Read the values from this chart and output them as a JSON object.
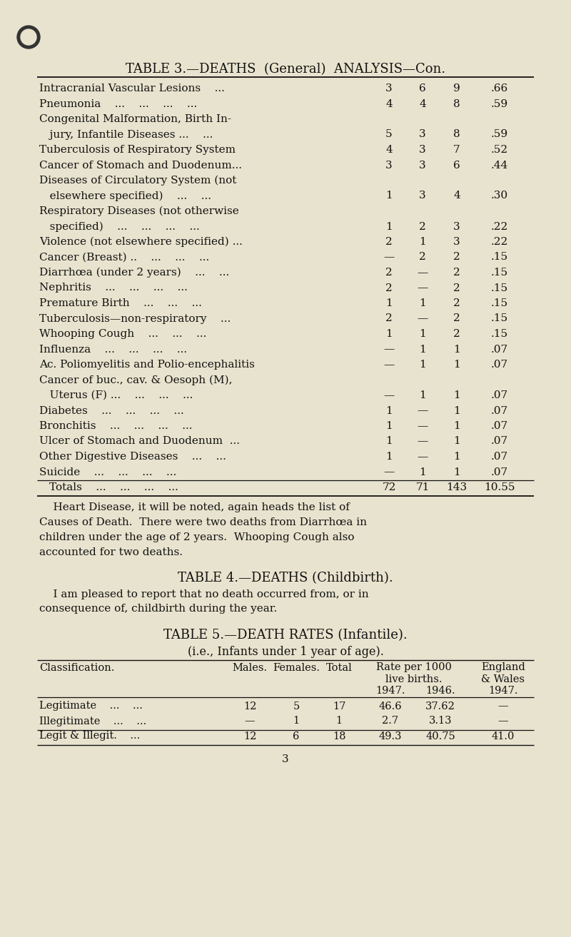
{
  "bg_color": "#e8e3ce",
  "title3": "TABLE 3.—DEATHS  (General)  ANALYSIS—Con.",
  "table3_rows": [
    [
      "Intracranial Vascular Lesions    ...",
      "3",
      "6",
      "9",
      ".66"
    ],
    [
      "Pneumonia    ...    ...    ...    ...",
      "4",
      "4",
      "8",
      ".59"
    ],
    [
      "Congenital Malformation, Birth In-",
      "",
      "",
      "",
      ""
    ],
    [
      "   jury, Infantile Diseases ...    ...",
      "5",
      "3",
      "8",
      ".59"
    ],
    [
      "Tuberculosis of Respiratory System",
      "4",
      "3",
      "7",
      ".52"
    ],
    [
      "Cancer of Stomach and Duodenum...",
      "3",
      "3",
      "6",
      ".44"
    ],
    [
      "Diseases of Circulatory System (not",
      "",
      "",
      "",
      ""
    ],
    [
      "   elsewhere specified)    ...    ...",
      "1",
      "3",
      "4",
      ".30"
    ],
    [
      "Respiratory Diseases (not otherwise",
      "",
      "",
      "",
      ""
    ],
    [
      "   specified)    ...    ...    ...    ...",
      "1",
      "2",
      "3",
      ".22"
    ],
    [
      "Violence (not elsewhere specified) ...",
      "2",
      "1",
      "3",
      ".22"
    ],
    [
      "Cancer (Breast) ..    ...    ...    ...",
      "—",
      "2",
      "2",
      ".15"
    ],
    [
      "Diarrhœa (under 2 years)    ...    ...",
      "2",
      "—",
      "2",
      ".15"
    ],
    [
      "Nephritis    ...    ...    ...    ...",
      "2",
      "—",
      "2",
      ".15"
    ],
    [
      "Premature Birth    ...    ...    ...",
      "1",
      "1",
      "2",
      ".15"
    ],
    [
      "Tuberculosis—non-respiratory    ...",
      "2",
      "—",
      "2",
      ".15"
    ],
    [
      "Whooping Cough    ...    ...    ...",
      "1",
      "1",
      "2",
      ".15"
    ],
    [
      "Influenza    ...    ...    ...    ...",
      "—",
      "1",
      "1",
      ".07"
    ],
    [
      "Ac. Poliomyelitis and Polio-encephalitis",
      "—",
      "1",
      "1",
      ".07"
    ],
    [
      "Cancer of buc., cav. & Oesoph (M),",
      "",
      "",
      "",
      ""
    ],
    [
      "   Uterus (F) ...    ...    ...    ...",
      "—",
      "1",
      "1",
      ".07"
    ],
    [
      "Diabetes    ...    ...    ...    ...",
      "1",
      "—",
      "1",
      ".07"
    ],
    [
      "Bronchitis    ...    ...    ...    ...",
      "1",
      "—",
      "1",
      ".07"
    ],
    [
      "Ulcer of Stomach and Duodenum  ...",
      "1",
      "—",
      "1",
      ".07"
    ],
    [
      "Other Digestive Diseases    ...    ...",
      "1",
      "—",
      "1",
      ".07"
    ],
    [
      "Suicide    ...    ...    ...    ...",
      "—",
      "1",
      "1",
      ".07"
    ]
  ],
  "table3_totals": [
    "Totals    ...    ...    ...    ...",
    "72",
    "71",
    "143",
    "10.55"
  ],
  "para1_lines": [
    "    Heart Disease, it will be noted, again heads the list of",
    "Causes of Death.  There were two deaths from Diarrhœa in",
    "children under the age of 2 years.  Whooping Cough also",
    "accounted for two deaths."
  ],
  "title4": "TABLE 4.—DEATHS (Childbirth).",
  "para2_lines": [
    "    I am pleased to report that no death occurred from, or in",
    "consequence of, childbirth during the year."
  ],
  "title5": "TABLE 5.—DEATH RATES (Infantile).",
  "subtitle5": "(i.e., Infants under 1 year of age).",
  "table5_rows": [
    [
      "Legitimate    ...    ...",
      "12",
      "5",
      "17",
      "46.6",
      "37.62",
      "—"
    ],
    [
      "Illegitimate    ...    ...",
      "—",
      "1",
      "1",
      "2.7",
      "3.13",
      "—"
    ]
  ],
  "table5_total": [
    "Legit & Illegit.    ...",
    "12",
    "6",
    "18",
    "49.3",
    "40.75",
    "41.0"
  ],
  "page_number": "3",
  "text_color": "#111111"
}
